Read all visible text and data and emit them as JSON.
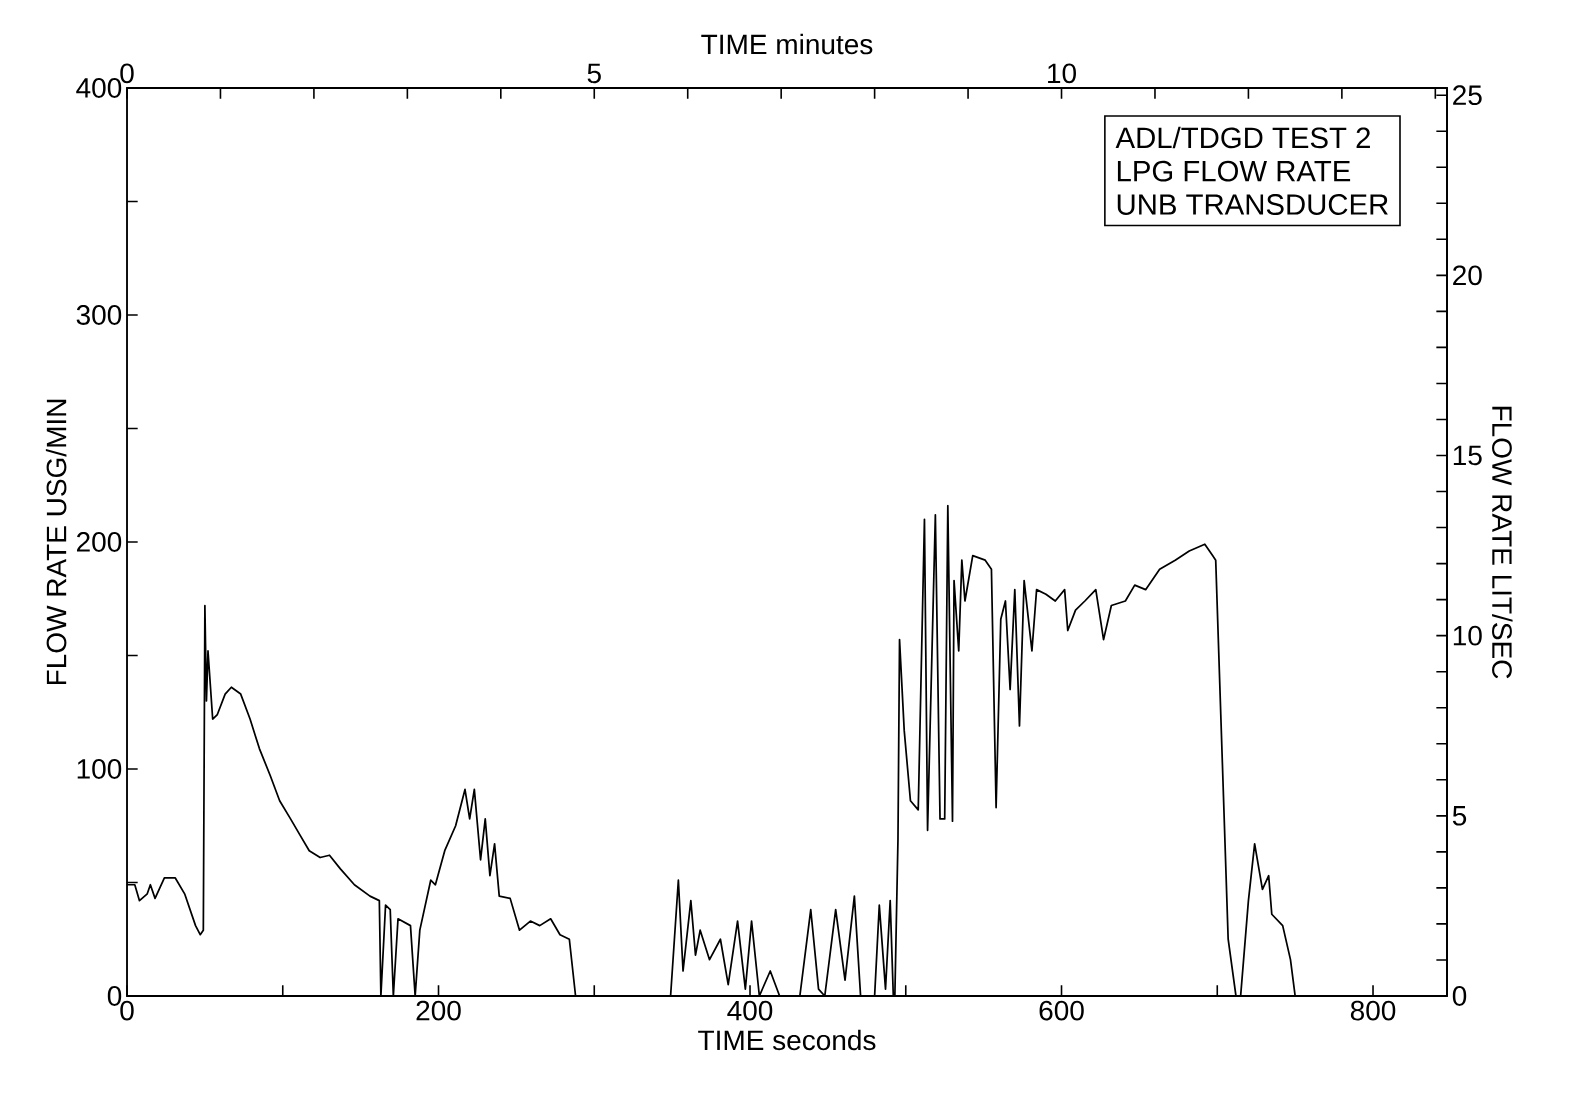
{
  "chart_data": {
    "type": "line",
    "xlabel": "TIME  seconds",
    "ylabel": "FLOW RATE  USG/MIN",
    "y2label": "FLOW RATE  LIT/SEC",
    "x2label": "TIME  minutes",
    "annotations": [
      "ADL/TDGD TEST 2",
      "LPG FLOW RATE",
      "UNB TRANSDUCER"
    ],
    "xlim": [
      0,
      847.5
    ],
    "ylim": [
      0,
      400
    ],
    "y2lim": [
      0,
      25.2
    ],
    "x2lim": [
      0,
      14.125
    ],
    "xticks": [
      0,
      {
        "value": 100,
        "label": null
      },
      200,
      {
        "value": 300,
        "label": null
      },
      400,
      {
        "value": 500,
        "label": null
      },
      600,
      {
        "value": 700,
        "label": null
      },
      800
    ],
    "yticks": [
      0,
      {
        "value": 50,
        "label": null
      },
      100,
      {
        "value": 150,
        "label": null
      },
      200,
      {
        "value": 250,
        "label": null
      },
      300,
      {
        "value": 350,
        "label": null
      },
      400
    ],
    "y2ticks": [
      0,
      {
        "value": 1,
        "label": null
      },
      {
        "value": 2,
        "label": null
      },
      {
        "value": 3,
        "label": null
      },
      {
        "value": 4,
        "label": null
      },
      5,
      {
        "value": 6,
        "label": null
      },
      {
        "value": 7,
        "label": null
      },
      {
        "value": 8,
        "label": null
      },
      {
        "value": 9,
        "label": null
      },
      10,
      {
        "value": 11,
        "label": null
      },
      {
        "value": 12,
        "label": null
      },
      {
        "value": 13,
        "label": null
      },
      {
        "value": 14,
        "label": null
      },
      15,
      {
        "value": 16,
        "label": null
      },
      {
        "value": 17,
        "label": null
      },
      {
        "value": 18,
        "label": null
      },
      {
        "value": 19,
        "label": null
      },
      20,
      {
        "value": 21,
        "label": null
      },
      {
        "value": 22,
        "label": null
      },
      {
        "value": 23,
        "label": null
      },
      {
        "value": 24,
        "label": null
      },
      25
    ],
    "x2ticks": [
      0,
      {
        "value": 1,
        "label": null
      },
      {
        "value": 2,
        "label": null
      },
      {
        "value": 3,
        "label": null
      },
      {
        "value": 4,
        "label": null
      },
      5,
      {
        "value": 6,
        "label": null
      },
      {
        "value": 7,
        "label": null
      },
      {
        "value": 8,
        "label": null
      },
      {
        "value": 9,
        "label": null
      },
      10,
      {
        "value": 11,
        "label": null
      },
      {
        "value": 12,
        "label": null
      },
      {
        "value": 13,
        "label": null
      },
      {
        "value": 14,
        "label": null
      }
    ],
    "grid": false,
    "marker": "none",
    "line_style": "solid",
    "x": [
      0,
      5,
      8,
      13,
      15,
      18,
      24,
      31,
      37,
      44,
      47,
      49,
      50,
      51,
      52,
      55,
      58,
      63,
      67,
      73,
      79,
      85,
      92,
      98,
      105,
      111,
      117,
      124,
      130,
      137,
      146,
      156,
      162,
      163,
      166,
      169,
      171,
      174,
      182,
      185,
      188,
      195,
      198,
      204,
      211,
      217,
      220,
      223,
      227,
      230,
      233,
      236,
      239,
      246,
      252,
      259,
      265,
      272,
      278,
      284,
      288,
      349,
      354,
      357,
      362,
      365,
      368,
      374,
      381,
      386,
      392,
      397,
      401,
      406,
      413,
      419,
      432,
      439,
      444,
      448,
      455,
      461,
      467,
      471,
      480,
      483,
      487,
      490,
      492,
      493,
      495,
      496,
      499,
      503,
      508,
      512,
      514,
      519,
      522,
      525,
      527,
      530,
      531,
      534,
      536,
      538,
      543,
      551,
      555,
      558,
      561,
      564,
      567,
      570,
      573,
      576,
      581,
      584,
      590,
      596,
      602,
      604,
      609,
      615,
      622,
      627,
      632,
      641,
      647,
      654,
      663,
      673,
      682,
      692,
      697,
      699,
      707,
      712,
      715,
      720,
      724,
      729,
      733,
      735,
      742,
      747,
      750
    ],
    "series": [
      {
        "color": "#000000",
        "values": [
          49,
          49,
          42,
          45,
          49,
          43,
          52,
          52,
          45,
          31,
          27,
          29,
          172,
          130,
          152,
          122,
          124,
          133,
          136,
          133,
          122,
          109,
          97,
          86,
          78,
          71,
          64,
          61,
          62,
          56,
          49,
          44,
          42,
          0,
          40,
          38,
          0,
          34,
          31,
          0,
          29,
          51,
          49,
          64,
          75,
          91,
          78,
          91,
          60,
          78,
          53,
          67,
          44,
          43,
          29,
          33,
          31,
          34,
          27,
          25,
          0,
          0,
          51,
          11,
          42,
          18,
          29,
          16,
          25,
          5,
          33,
          3,
          33,
          0,
          11,
          0,
          0,
          38,
          3,
          0,
          38,
          7,
          44,
          0,
          0,
          40,
          3,
          42,
          0,
          0,
          69,
          157,
          117,
          86,
          82,
          210,
          73,
          212,
          78,
          78,
          216,
          77,
          183,
          152,
          192,
          174,
          194,
          192,
          188,
          83,
          166,
          174,
          135,
          179,
          119,
          183,
          152,
          179,
          177,
          174,
          179,
          161,
          170,
          174,
          179,
          157,
          172,
          174,
          181,
          179,
          188,
          192,
          196,
          199,
          194,
          192,
          25,
          0,
          0,
          42,
          67,
          47,
          53,
          36,
          31,
          16,
          0
        ]
      }
    ]
  }
}
